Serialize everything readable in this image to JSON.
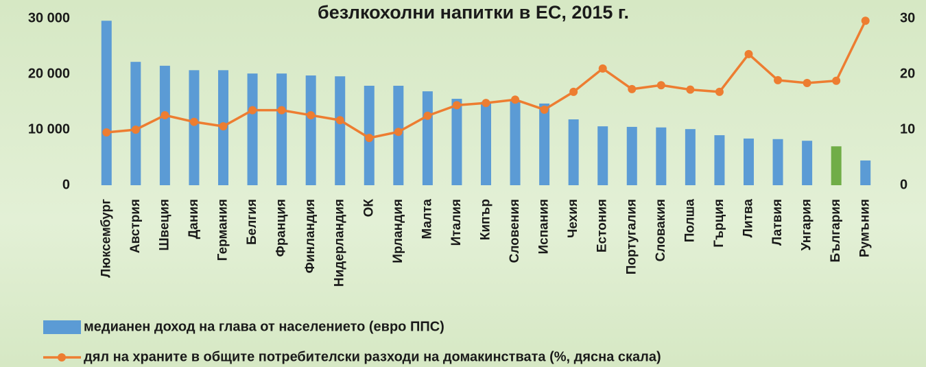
{
  "chart_data": {
    "type": "combo",
    "title": "безлкохолни напитки в ЕС, 2015 г.",
    "categories": [
      "Люксембург",
      "Австрия",
      "Швеция",
      "Дания",
      "Германия",
      "Белгия",
      "Франция",
      "Финландия",
      "Нидерландия",
      "ОК",
      "Ирландия",
      "Малта",
      "Италия",
      "Кипър",
      "Словения",
      "Испания",
      "Чехия",
      "Естония",
      "Португалия",
      "Словакия",
      "Полша",
      "Гърция",
      "Литва",
      "Латвия",
      "Унгария",
      "България",
      "Румъния"
    ],
    "series": [
      {
        "name": "медианен доход на глава от населението (евро ППС)",
        "type": "bar",
        "axis": "y",
        "color": "#5b9bd5",
        "colors": [
          "#5b9bd5",
          "#5b9bd5",
          "#5b9bd5",
          "#5b9bd5",
          "#5b9bd5",
          "#5b9bd5",
          "#5b9bd5",
          "#5b9bd5",
          "#5b9bd5",
          "#5b9bd5",
          "#5b9bd5",
          "#5b9bd5",
          "#5b9bd5",
          "#5b9bd5",
          "#5b9bd5",
          "#5b9bd5",
          "#5b9bd5",
          "#5b9bd5",
          "#5b9bd5",
          "#5b9bd5",
          "#5b9bd5",
          "#5b9bd5",
          "#5b9bd5",
          "#5b9bd5",
          "#5b9bd5",
          "#70ad47",
          "#5b9bd5"
        ],
        "values": [
          29600,
          22200,
          21500,
          20700,
          20700,
          20100,
          20100,
          19750,
          19600,
          17900,
          17900,
          16900,
          15550,
          15000,
          15200,
          14700,
          11850,
          10600,
          10500,
          10400,
          10100,
          9000,
          8400,
          8300,
          8000,
          7000,
          4450
        ]
      },
      {
        "name": "дял на храните в общите потребителски разходи на домакинствата (%, дясна скала)",
        "type": "line",
        "axis": "y2",
        "color": "#ed7d31",
        "values": [
          9.5,
          10.0,
          12.6,
          11.4,
          10.6,
          13.5,
          13.5,
          12.6,
          11.7,
          8.5,
          9.6,
          12.5,
          14.4,
          14.8,
          15.4,
          13.6,
          16.8,
          21.0,
          17.3,
          18.0,
          17.2,
          16.8,
          23.6,
          18.9,
          18.4,
          18.8,
          29.6
        ]
      }
    ],
    "ylim": [
      0,
      30000
    ],
    "yticks": [
      0,
      {
        "value": 10000,
        "label": "10 000"
      },
      {
        "value": 20000,
        "label": "20 000"
      },
      {
        "value": 30000,
        "label": "30 000"
      }
    ],
    "y2lim": [
      0,
      30
    ],
    "y2ticks": [
      0,
      10,
      20,
      30
    ],
    "grid": false,
    "legend": "bottom"
  }
}
